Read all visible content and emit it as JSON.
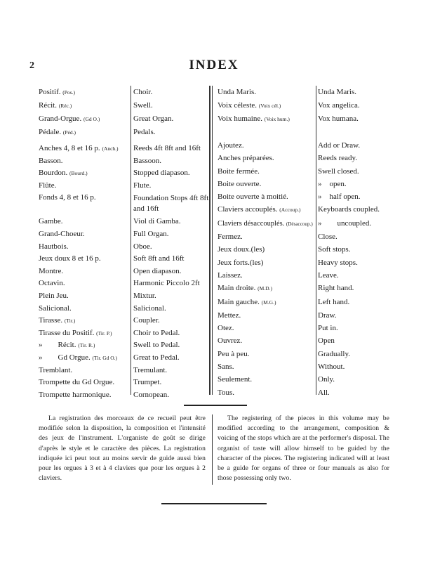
{
  "page_number": "2",
  "title": "INDEX",
  "left_block1": [
    {
      "fr": "Positif.",
      "abbr": "(Pos.)",
      "en": "Choir."
    },
    {
      "fr": "Récit.",
      "abbr": "(Réc.)",
      "en": "Swell."
    },
    {
      "fr": "Grand-Orgue.",
      "abbr": "(Gd O.)",
      "en": "Great Organ."
    },
    {
      "fr": "Pédale.",
      "abbr": "(Péd.)",
      "en": "Pedals."
    }
  ],
  "left_block2": [
    {
      "fr": "Anches 4, 8 et 16 p.",
      "abbr": "(Anch.)",
      "en": "Reeds 4ft 8ft and 16ft"
    },
    {
      "fr": "Basson.",
      "abbr": "",
      "en": "Bassoon."
    },
    {
      "fr": "Bourdon.",
      "abbr": "(Bourd.)",
      "en": "Stopped diapason."
    },
    {
      "fr": "Flûte.",
      "abbr": "",
      "en": "Flute."
    },
    {
      "fr": "Fonds 4, 8 et 16 p.",
      "abbr": "",
      "en": "Foundation Stops 4ft 8ft and 16ft"
    },
    {
      "fr": "Gambe.",
      "abbr": "",
      "en": "Viol di Gamba."
    },
    {
      "fr": "Grand-Choeur.",
      "abbr": "",
      "en": "Full Organ."
    },
    {
      "fr": "Hautbois.",
      "abbr": "",
      "en": "Oboe."
    },
    {
      "fr": "Jeux doux 8 et 16 p.",
      "abbr": "",
      "en": "Soft 8ft and 16ft"
    },
    {
      "fr": "Montre.",
      "abbr": "",
      "en": "Open diapason."
    },
    {
      "fr": "Octavin.",
      "abbr": "",
      "en": "Harmonic Piccolo 2ft"
    },
    {
      "fr": "Plein Jeu.",
      "abbr": "",
      "en": "Mixtur."
    },
    {
      "fr": "Salicional.",
      "abbr": "",
      "en": "Salicional."
    },
    {
      "fr": "Tirasse.",
      "abbr": "(Tir.)",
      "en": "Coupler."
    },
    {
      "fr": "Tirasse du Positif.",
      "abbr": "(Tir. P.)",
      "en": "Choir to Pedal."
    },
    {
      "fr": "»        Récit.",
      "abbr": "(Tir. R.)",
      "en": "Swell to Pedal."
    },
    {
      "fr": "»        Gd Orgue.",
      "abbr": "(Tir. Gd O.)",
      "en": "Great to Pedal."
    },
    {
      "fr": "Tremblant.",
      "abbr": "",
      "en": "Tremulant."
    },
    {
      "fr": "Trompette du Gd Orgue.",
      "abbr": "",
      "en": "Trumpet."
    },
    {
      "fr": "Trompette harmonique.",
      "abbr": "",
      "en": "Cornopean."
    }
  ],
  "right_block1": [
    {
      "fr": "Unda Maris.",
      "abbr": "",
      "en": "Unda Maris."
    },
    {
      "fr": "Voix céleste.",
      "abbr": "(Voix cél.)",
      "en": "Vox angelica."
    },
    {
      "fr": "Voix humaine.",
      "abbr": "(Voix hum.)",
      "en": "Vox humana."
    }
  ],
  "right_block2": [
    {
      "fr": "Ajoutez.",
      "abbr": "",
      "en": "Add or Draw."
    },
    {
      "fr": "Anches préparées.",
      "abbr": "",
      "en": "Reeds ready."
    },
    {
      "fr": "Boite fermée.",
      "abbr": "",
      "en": "Swell closed."
    },
    {
      "fr": "Boite ouverte.",
      "abbr": "",
      "en": "»    open."
    },
    {
      "fr": "Boite ouverte à moitié.",
      "abbr": "",
      "en": "»    half open."
    },
    {
      "fr": "Claviers accouplés.",
      "abbr": "(Accoup.)",
      "en": "Keyboards coupled."
    },
    {
      "fr": "Claviers désaccouplés.",
      "abbr": "(Désaccoup.)",
      "en": "»        uncoupled."
    },
    {
      "fr": "Fermez.",
      "abbr": "",
      "en": "Close."
    },
    {
      "fr": "Jeux doux.(les)",
      "abbr": "",
      "en": "Soft stops."
    },
    {
      "fr": "Jeux forts.(les)",
      "abbr": "",
      "en": "Heavy stops."
    },
    {
      "fr": "Laissez.",
      "abbr": "",
      "en": "Leave."
    },
    {
      "fr": "Main droite.",
      "abbr": "(M.D.)",
      "en": "Right hand."
    },
    {
      "fr": "Main gauche.",
      "abbr": "(M.G.)",
      "en": "Left hand."
    },
    {
      "fr": "Mettez.",
      "abbr": "",
      "en": "Draw."
    },
    {
      "fr": "Otez.",
      "abbr": "",
      "en": "Put in."
    },
    {
      "fr": "Ouvrez.",
      "abbr": "",
      "en": "Open"
    },
    {
      "fr": "Peu à peu.",
      "abbr": "",
      "en": "Gradually."
    },
    {
      "fr": "Sans.",
      "abbr": "",
      "en": "Without."
    },
    {
      "fr": "Seulement.",
      "abbr": "",
      "en": "Only."
    },
    {
      "fr": "Tous.",
      "abbr": "",
      "en": "All."
    }
  ],
  "note_fr": "La registration des morceaux de ce recueil peut être modifiée selon la disposition, la composition et l'intensité des jeux de l'instrument. L'organiste de goût se dirige d'après le style et le caractère des pièces. La registration indiquée ici peut tout au moins servir de guide aussi bien pour les orgues à 3 et à 4 claviers que pour les orgues à 2 claviers.",
  "note_en": "The registering of the pieces in this volume may be modified according to the arrangement, composition & voicing of the stops which are at the performer's disposal. The organist of taste will allow himself to be guided by the character of the pieces. The registering indicated will at least be a guide for organs of three or four manuals as also for those possessing only two."
}
